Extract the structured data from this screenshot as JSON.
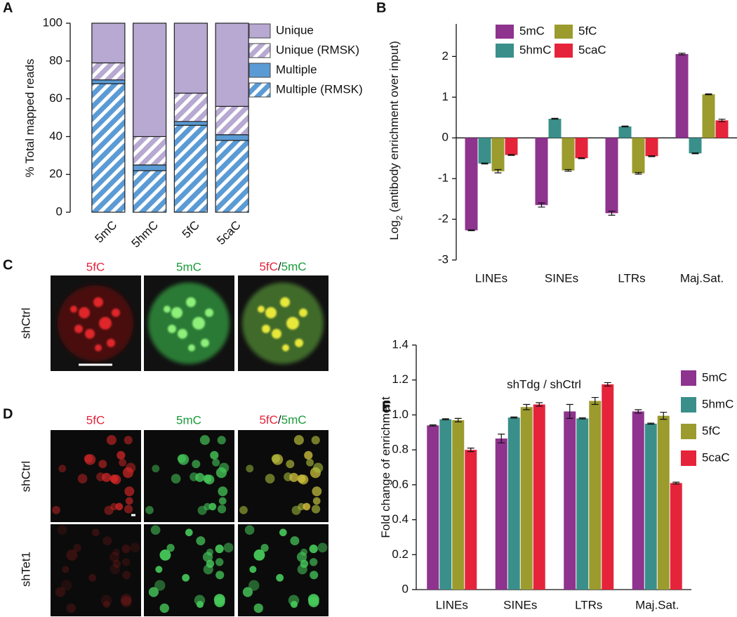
{
  "figure": {
    "panel_letters": [
      "A",
      "B",
      "C",
      "D",
      "E"
    ],
    "panel_c": {
      "columns": [
        [
          "5fC"
        ],
        [
          "5mC"
        ],
        [
          "5fC",
          "/",
          "5mC"
        ]
      ],
      "rows": [
        "shCtrl"
      ]
    },
    "panel_d": {
      "columns": [
        [
          "5fC"
        ],
        [
          "5mC"
        ],
        [
          "5fC",
          "/",
          "5mC"
        ]
      ],
      "rows": [
        "shCtrl",
        "shTet1"
      ]
    }
  },
  "chart_data": [
    {
      "type": "bar",
      "stacked": true,
      "ylabel": [
        "% Total mapped reads"
      ],
      "categories": [
        "5mC",
        "5hmC",
        "5fC",
        "5caC"
      ],
      "ylim": [
        0,
        100
      ],
      "yticks": [
        0,
        20,
        40,
        60,
        80,
        100
      ],
      "series": [
        {
          "name": "Multiple (RMSK)",
          "color": "#5b9bd5",
          "hatch": true,
          "values": [
            68,
            22,
            46,
            38
          ]
        },
        {
          "name": "Multiple",
          "color": "#5b9bd5",
          "hatch": false,
          "values": [
            2,
            3,
            2,
            3
          ]
        },
        {
          "name": "Unique (RMSK)",
          "color": "#b7a9d2",
          "hatch": true,
          "values": [
            9,
            15,
            15,
            15
          ]
        },
        {
          "name": "Unique",
          "color": "#b7a9d2",
          "hatch": false,
          "values": [
            21,
            60,
            37,
            44
          ]
        }
      ]
    },
    {
      "type": "bar",
      "stacked": false,
      "ylabel": [
        "Log",
        "2",
        " (antibody enrichment over input)"
      ],
      "categories": [
        "LINEs",
        "SINEs",
        "LTRs",
        "Maj.Sat."
      ],
      "ylim": [
        -3,
        2.8
      ],
      "yticks": [
        -3,
        -2,
        -1,
        0,
        1,
        2
      ],
      "series": [
        {
          "name": "5mC",
          "color": "#8e338e",
          "values": [
            -2.27,
            -1.65,
            -1.85,
            2.06
          ],
          "errors": [
            0.01,
            0.05,
            0.05,
            0.02
          ]
        },
        {
          "name": "5hmC",
          "color": "#3a8f8a",
          "values": [
            -0.63,
            0.47,
            0.28,
            -0.38
          ],
          "errors": [
            0.01,
            0.01,
            0.01,
            0.01
          ]
        },
        {
          "name": "5fC",
          "color": "#9b9b2e",
          "values": [
            -0.82,
            -0.8,
            -0.87,
            1.07
          ],
          "errors": [
            0.04,
            0.02,
            0.02,
            0.01
          ]
        },
        {
          "name": "5caC",
          "color": "#e5243b",
          "values": [
            -0.42,
            -0.5,
            -0.45,
            0.43
          ],
          "errors": [
            0.01,
            0.01,
            0.01,
            0.03
          ]
        }
      ]
    },
    {
      "type": "bar",
      "stacked": false,
      "title": "shTdg / shCtrl",
      "ylabel": [
        "Fold change of enrichment"
      ],
      "categories": [
        "LINEs",
        "SINEs",
        "LTRs",
        "Maj.Sat."
      ],
      "ylim": [
        0,
        1.4
      ],
      "yticks": [
        0,
        0.2,
        0.4,
        0.6,
        0.8,
        {
          "value": 1,
          "label": "1.0"
        },
        1.2,
        1.4
      ],
      "series": [
        {
          "name": "5mC",
          "color": "#8e338e",
          "values": [
            0.94,
            0.865,
            1.02,
            1.02
          ],
          "errors": [
            0.003,
            0.025,
            0.04,
            0.01
          ]
        },
        {
          "name": "5hmC",
          "color": "#3a8f8a",
          "values": [
            0.975,
            0.985,
            0.98,
            0.95
          ],
          "errors": [
            0.003,
            0.003,
            0.003,
            0.003
          ]
        },
        {
          "name": "5fC",
          "color": "#9b9b2e",
          "values": [
            0.97,
            1.045,
            1.08,
            0.995
          ],
          "errors": [
            0.01,
            0.015,
            0.02,
            0.02
          ]
        },
        {
          "name": "5caC",
          "color": "#e5243b",
          "values": [
            0.8,
            1.06,
            1.175,
            0.61
          ],
          "errors": [
            0.01,
            0.01,
            0.01,
            0.005
          ]
        }
      ]
    }
  ]
}
